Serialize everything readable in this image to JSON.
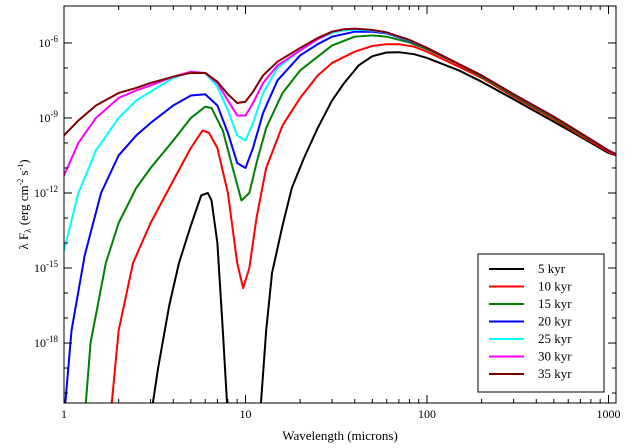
{
  "chart_data": {
    "type": "line",
    "xscale": "log",
    "yscale": "log",
    "xlim": [
      1,
      1100
    ],
    "ylim": [
      4e-21,
      3e-05
    ],
    "xlabel": "Wavelength (microns)",
    "ylabel": {
      "pre": "λ F",
      "sub": "λ",
      "open": " (erg cm",
      "sup1": "-2",
      "mid": " s",
      "sup2": "-1",
      "close": ")"
    },
    "x_ticks": [
      {
        "value": 1,
        "label": "1"
      },
      {
        "value": 10,
        "label": "10"
      },
      {
        "value": 100,
        "label": "100"
      },
      {
        "value": 1000,
        "label": "1000"
      }
    ],
    "y_ticks": [
      {
        "value": 1e-18,
        "base": "10",
        "exp": "-18"
      },
      {
        "value": 1e-15,
        "base": "10",
        "exp": "-15"
      },
      {
        "value": 1e-12,
        "base": "10",
        "exp": "-12"
      },
      {
        "value": 1e-09,
        "base": "10",
        "exp": "-9"
      },
      {
        "value": 1e-06,
        "base": "10",
        "exp": "-6"
      }
    ],
    "legend_position": "bottom-right",
    "series": [
      {
        "name": "5 kyr",
        "color": "#000000",
        "points": [
          [
            3,
            -21
          ],
          [
            3.3,
            -19
          ],
          [
            3.8,
            -16.5
          ],
          [
            4.3,
            -14.8
          ],
          [
            5,
            -13.3
          ],
          [
            5.7,
            -12.1
          ],
          [
            6.2,
            -12.0
          ],
          [
            6.5,
            -12.3
          ],
          [
            7,
            -14
          ],
          [
            7.5,
            -17.5
          ],
          [
            8,
            -21
          ]
        ],
        "points2": [
          [
            12,
            -21
          ],
          [
            13,
            -17.5
          ],
          [
            14,
            -15.2
          ],
          [
            16,
            -13.3
          ],
          [
            18,
            -11.8
          ],
          [
            21,
            -10.6
          ],
          [
            25,
            -9.4
          ],
          [
            30,
            -8.3
          ],
          [
            35,
            -7.6
          ],
          [
            42,
            -6.9
          ],
          [
            50,
            -6.53
          ],
          [
            60,
            -6.38
          ],
          [
            70,
            -6.37
          ],
          [
            85,
            -6.45
          ],
          [
            100,
            -6.6
          ],
          [
            150,
            -7.1
          ],
          [
            200,
            -7.55
          ],
          [
            300,
            -8.25
          ],
          [
            500,
            -9.15
          ],
          [
            700,
            -9.75
          ],
          [
            1000,
            -10.4
          ],
          [
            1100,
            -10.5
          ]
        ]
      },
      {
        "name": "10 kyr",
        "color": "#ff0000",
        "points": [
          [
            1.8,
            -21
          ],
          [
            2.0,
            -17.5
          ],
          [
            2.4,
            -14.8
          ],
          [
            3,
            -13.2
          ],
          [
            4,
            -11.5
          ],
          [
            5,
            -10.2
          ],
          [
            5.8,
            -9.5
          ],
          [
            6.3,
            -9.6
          ],
          [
            7,
            -10.2
          ],
          [
            8,
            -12
          ],
          [
            9,
            -14.8
          ],
          [
            9.7,
            -15.8
          ],
          [
            10.5,
            -15
          ],
          [
            11.5,
            -13
          ],
          [
            13,
            -11
          ],
          [
            16,
            -9.3
          ],
          [
            20,
            -8.2
          ],
          [
            25,
            -7.3
          ],
          [
            30,
            -6.8
          ],
          [
            40,
            -6.35
          ],
          [
            50,
            -6.12
          ],
          [
            60,
            -6.05
          ],
          [
            70,
            -6.05
          ],
          [
            85,
            -6.15
          ],
          [
            100,
            -6.35
          ],
          [
            150,
            -6.95
          ],
          [
            200,
            -7.4
          ],
          [
            300,
            -8.15
          ],
          [
            500,
            -9.05
          ],
          [
            700,
            -9.7
          ],
          [
            1000,
            -10.35
          ],
          [
            1100,
            -10.5
          ]
        ]
      },
      {
        "name": "15 kyr",
        "color": "#008000",
        "points": [
          [
            1.3,
            -21
          ],
          [
            1.4,
            -18
          ],
          [
            1.7,
            -14.8
          ],
          [
            2,
            -13.2
          ],
          [
            2.5,
            -11.8
          ],
          [
            3,
            -11
          ],
          [
            4,
            -9.9
          ],
          [
            5,
            -9.0
          ],
          [
            6,
            -8.55
          ],
          [
            6.5,
            -8.6
          ],
          [
            7.5,
            -9.5
          ],
          [
            8.5,
            -11
          ],
          [
            9.5,
            -12.3
          ],
          [
            10.5,
            -12
          ],
          [
            11.5,
            -10.8
          ],
          [
            13,
            -9.4
          ],
          [
            16,
            -8
          ],
          [
            20,
            -7.1
          ],
          [
            25,
            -6.55
          ],
          [
            30,
            -6.1
          ],
          [
            40,
            -5.75
          ],
          [
            50,
            -5.7
          ],
          [
            60,
            -5.75
          ],
          [
            80,
            -5.98
          ],
          [
            100,
            -6.25
          ],
          [
            150,
            -6.85
          ],
          [
            200,
            -7.35
          ],
          [
            300,
            -8.1
          ],
          [
            500,
            -9.0
          ],
          [
            700,
            -9.65
          ],
          [
            1000,
            -10.3
          ],
          [
            1100,
            -10.45
          ]
        ]
      },
      {
        "name": "20 kyr",
        "color": "#0000ff",
        "points": [
          [
            1,
            -21
          ],
          [
            1.1,
            -17.5
          ],
          [
            1.3,
            -14.5
          ],
          [
            1.6,
            -12
          ],
          [
            2,
            -10.5
          ],
          [
            2.5,
            -9.7
          ],
          [
            3,
            -9.2
          ],
          [
            4,
            -8.5
          ],
          [
            5,
            -8.1
          ],
          [
            6,
            -8.05
          ],
          [
            7,
            -8.5
          ],
          [
            8,
            -9.6
          ],
          [
            9,
            -10.8
          ],
          [
            10,
            -11
          ],
          [
            11,
            -10.2
          ],
          [
            12.5,
            -8.8
          ],
          [
            15,
            -7.5
          ],
          [
            20,
            -6.5
          ],
          [
            25,
            -6.05
          ],
          [
            30,
            -5.75
          ],
          [
            40,
            -5.55
          ],
          [
            50,
            -5.55
          ],
          [
            60,
            -5.62
          ],
          [
            80,
            -5.92
          ],
          [
            100,
            -6.2
          ],
          [
            150,
            -6.85
          ],
          [
            200,
            -7.3
          ],
          [
            300,
            -8.05
          ],
          [
            500,
            -8.95
          ],
          [
            700,
            -9.6
          ],
          [
            1000,
            -10.3
          ],
          [
            1100,
            -10.45
          ]
        ]
      },
      {
        "name": "25 kyr",
        "color": "#00ffff",
        "points": [
          [
            1,
            -14.3
          ],
          [
            1.2,
            -12
          ],
          [
            1.5,
            -10.3
          ],
          [
            2,
            -9
          ],
          [
            2.5,
            -8.3
          ],
          [
            3,
            -7.95
          ],
          [
            4,
            -7.4
          ],
          [
            5,
            -7.15
          ],
          [
            6,
            -7.2
          ],
          [
            7,
            -7.75
          ],
          [
            8,
            -8.7
          ],
          [
            9,
            -9.7
          ],
          [
            10,
            -9.9
          ],
          [
            11,
            -9.2
          ],
          [
            12.5,
            -8
          ],
          [
            15,
            -7
          ],
          [
            20,
            -6.3
          ],
          [
            25,
            -5.85
          ],
          [
            30,
            -5.6
          ],
          [
            35,
            -5.5
          ],
          [
            40,
            -5.47
          ],
          [
            50,
            -5.5
          ],
          [
            60,
            -5.6
          ],
          [
            80,
            -5.9
          ],
          [
            100,
            -6.2
          ],
          [
            150,
            -6.85
          ],
          [
            200,
            -7.3
          ],
          [
            300,
            -8.05
          ],
          [
            500,
            -8.95
          ],
          [
            700,
            -9.6
          ],
          [
            1000,
            -10.3
          ],
          [
            1100,
            -10.45
          ]
        ]
      },
      {
        "name": "30 kyr",
        "color": "#ff00ff",
        "points": [
          [
            1,
            -11.3
          ],
          [
            1.2,
            -10
          ],
          [
            1.5,
            -9
          ],
          [
            2,
            -8.2
          ],
          [
            2.5,
            -7.9
          ],
          [
            3,
            -7.7
          ],
          [
            4,
            -7.35
          ],
          [
            5,
            -7.15
          ],
          [
            6,
            -7.2
          ],
          [
            7,
            -7.6
          ],
          [
            8,
            -8.3
          ],
          [
            9,
            -8.9
          ],
          [
            10,
            -8.9
          ],
          [
            11,
            -8.4
          ],
          [
            12.5,
            -7.6
          ],
          [
            15,
            -6.9
          ],
          [
            20,
            -6.3
          ],
          [
            25,
            -5.85
          ],
          [
            30,
            -5.55
          ],
          [
            35,
            -5.45
          ],
          [
            40,
            -5.43
          ],
          [
            50,
            -5.48
          ],
          [
            60,
            -5.58
          ],
          [
            80,
            -5.88
          ],
          [
            100,
            -6.2
          ],
          [
            150,
            -6.85
          ],
          [
            200,
            -7.3
          ],
          [
            300,
            -8.05
          ],
          [
            500,
            -8.95
          ],
          [
            700,
            -9.6
          ],
          [
            1000,
            -10.3
          ],
          [
            1100,
            -10.45
          ]
        ]
      },
      {
        "name": "35 kyr",
        "color": "#800000",
        "points": [
          [
            1,
            -9.7
          ],
          [
            1.2,
            -9.1
          ],
          [
            1.5,
            -8.5
          ],
          [
            2,
            -8
          ],
          [
            2.5,
            -7.8
          ],
          [
            3,
            -7.6
          ],
          [
            4,
            -7.35
          ],
          [
            5,
            -7.2
          ],
          [
            6,
            -7.2
          ],
          [
            7,
            -7.55
          ],
          [
            8,
            -8.05
          ],
          [
            9,
            -8.4
          ],
          [
            10,
            -8.35
          ],
          [
            11,
            -7.95
          ],
          [
            12.5,
            -7.3
          ],
          [
            15,
            -6.75
          ],
          [
            20,
            -6.2
          ],
          [
            25,
            -5.8
          ],
          [
            30,
            -5.55
          ],
          [
            35,
            -5.45
          ],
          [
            40,
            -5.43
          ],
          [
            50,
            -5.48
          ],
          [
            60,
            -5.58
          ],
          [
            80,
            -5.88
          ],
          [
            100,
            -6.2
          ],
          [
            150,
            -6.85
          ],
          [
            200,
            -7.3
          ],
          [
            300,
            -8.05
          ],
          [
            500,
            -8.95
          ],
          [
            700,
            -9.6
          ],
          [
            1000,
            -10.3
          ],
          [
            1100,
            -10.45
          ]
        ]
      }
    ]
  }
}
